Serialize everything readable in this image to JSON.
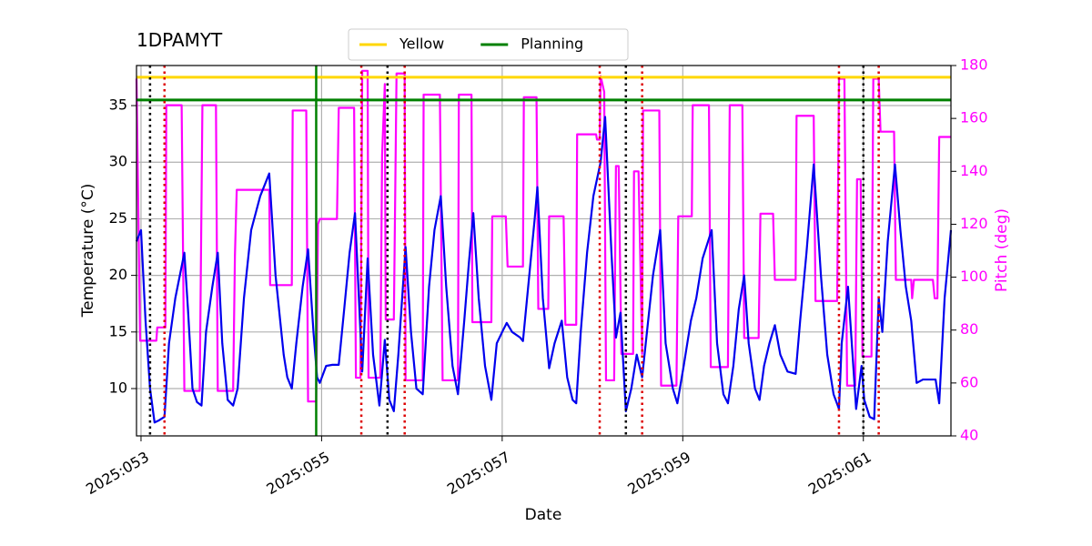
{
  "chart_data": {
    "type": "line",
    "title": "1DPAMYT",
    "xlabel": "Date",
    "ylabel": "Temperature (°C)",
    "y2label": "Pitch (deg)",
    "y2color": "#ff00ff",
    "xlim": [
      52.95,
      61.97
    ],
    "xticks": [
      {
        "value": 53,
        "label": "2025:053"
      },
      {
        "value": 55,
        "label": "2025:055"
      },
      {
        "value": 57,
        "label": "2025:057"
      },
      {
        "value": 59,
        "label": "2025:059"
      },
      {
        "value": 61,
        "label": "2025:061"
      }
    ],
    "ylim": [
      5.82,
      38.54
    ],
    "yticks": [
      10,
      15,
      20,
      25,
      30,
      35
    ],
    "y2lim": [
      40,
      180
    ],
    "y2ticks": [
      40,
      60,
      80,
      100,
      120,
      140,
      160,
      180
    ],
    "grid": true,
    "legend": "top",
    "hlines": [
      {
        "name": "Yellow",
        "color": "#ffd700",
        "value": 37.5
      },
      {
        "name": "Planning",
        "color": "#008000",
        "value": 35.5
      }
    ],
    "vlines": [
      {
        "color": "#000000",
        "style": "dotted",
        "x": [
          53.1,
          55.73,
          58.37,
          61.0
        ]
      },
      {
        "color": "#dd0000",
        "style": "dotted",
        "x": [
          53.26,
          55.44,
          55.92,
          58.08,
          58.55,
          60.73,
          61.17
        ]
      },
      {
        "color": "#008000",
        "style": "solid",
        "x": [
          54.94
        ]
      }
    ],
    "series": [
      {
        "color": "#0000ee",
        "x": [
          52.95,
          53.0,
          53.05,
          53.1,
          53.15,
          53.2,
          53.26,
          53.31,
          53.38,
          53.48,
          53.52,
          53.57,
          53.62,
          53.67,
          53.72,
          53.79,
          53.85,
          53.9,
          53.96,
          54.02,
          54.07,
          54.14,
          54.22,
          54.32,
          54.42,
          54.49,
          54.58,
          54.62,
          54.67,
          54.72,
          54.79,
          54.85,
          54.91,
          54.95,
          54.98,
          55.05,
          55.12,
          55.19,
          55.25,
          55.31,
          55.37,
          55.43,
          55.45,
          55.51,
          55.57,
          55.64,
          55.7,
          55.75,
          55.8,
          55.85,
          55.93,
          55.99,
          56.05,
          56.12,
          56.19,
          56.25,
          56.32,
          56.38,
          56.45,
          56.51,
          56.58,
          56.63,
          56.68,
          56.74,
          56.81,
          56.88,
          56.94,
          57.0,
          57.05,
          57.11,
          57.2,
          57.23,
          57.3,
          57.36,
          57.39,
          57.45,
          57.52,
          57.58,
          57.66,
          57.72,
          57.78,
          57.82,
          57.87,
          57.94,
          58.01,
          58.09,
          58.14,
          58.21,
          58.26,
          58.31,
          58.37,
          58.43,
          58.49,
          58.55,
          58.59,
          58.67,
          58.75,
          58.81,
          58.89,
          58.94,
          59.01,
          59.09,
          59.15,
          59.22,
          59.32,
          59.38,
          59.45,
          59.5,
          59.56,
          59.62,
          59.68,
          59.73,
          59.8,
          59.85,
          59.9,
          59.96,
          60.02,
          60.08,
          60.16,
          60.25,
          60.3,
          60.37,
          60.45,
          60.53,
          60.6,
          60.67,
          60.73,
          60.76,
          60.83,
          60.88,
          60.92,
          60.98,
          61.01,
          61.07,
          61.12,
          61.17,
          61.21,
          61.27,
          61.35,
          61.41,
          61.47,
          61.53,
          61.59,
          61.66,
          61.77,
          61.8,
          61.84,
          61.9,
          61.97
        ],
        "values": [
          23,
          24,
          16,
          10,
          7,
          7.2,
          7.5,
          14,
          18,
          22,
          17,
          10,
          8.8,
          8.5,
          15,
          19,
          22,
          14,
          9,
          8.5,
          10,
          18,
          24,
          27,
          29,
          20,
          13,
          11,
          10,
          14,
          19,
          22.3,
          15,
          11,
          10.5,
          12,
          12.1,
          12.1,
          17,
          22,
          25.5,
          15,
          11.5,
          21.5,
          13,
          8.5,
          14.3,
          9,
          8,
          13,
          22.5,
          15,
          10,
          9.5,
          19,
          24,
          27,
          19,
          12,
          9.5,
          16,
          21,
          25.5,
          18,
          12,
          9,
          14,
          15,
          15.8,
          15,
          14.5,
          14.2,
          20,
          25,
          27.8,
          18,
          11.8,
          14,
          16,
          11,
          9,
          8.7,
          15,
          22,
          27,
          30,
          34,
          22,
          14.5,
          16.7,
          8,
          10,
          13,
          11,
          14,
          20,
          24,
          14,
          10,
          8.7,
          12,
          16,
          18,
          21.5,
          24,
          14,
          9.5,
          8.7,
          12,
          17,
          20,
          14,
          10,
          9,
          12,
          14,
          15.6,
          13,
          11.5,
          11.3,
          16,
          22,
          29.8,
          20,
          13,
          9.5,
          8.2,
          14,
          19,
          13,
          8.2,
          12,
          9,
          7.5,
          7.3,
          18,
          15,
          23,
          29.8,
          24,
          19,
          16,
          10.5,
          10.8,
          10.8,
          10.8,
          8.7,
          18,
          24
        ]
      },
      {
        "color": "#ff00ff",
        "axis": "y2",
        "x": [
          52.95,
          52.99,
          53.17,
          53.18,
          53.27,
          53.28,
          53.45,
          53.48,
          53.65,
          53.68,
          53.83,
          53.85,
          54.02,
          54.04,
          54.06,
          54.42,
          54.43,
          54.67,
          54.68,
          54.83,
          54.85,
          54.94,
          54.96,
          54.98,
          55.17,
          55.19,
          55.36,
          55.38,
          55.43,
          55.45,
          55.51,
          55.52,
          55.65,
          55.67,
          55.7,
          55.71,
          55.8,
          55.83,
          55.92,
          55.93,
          56.12,
          56.13,
          56.31,
          56.34,
          56.51,
          56.52,
          56.66,
          56.67,
          56.88,
          56.89,
          57.04,
          57.06,
          57.23,
          57.24,
          57.38,
          57.4,
          57.51,
          57.52,
          57.68,
          57.7,
          57.82,
          57.83,
          58.04,
          58.05,
          58.08,
          58.09,
          58.13,
          58.15,
          58.24,
          58.26,
          58.29,
          58.32,
          58.45,
          58.46,
          58.51,
          58.55,
          58.56,
          58.74,
          58.76,
          58.93,
          58.95,
          59.1,
          59.11,
          59.29,
          59.31,
          59.5,
          59.52,
          59.66,
          59.68,
          59.84,
          59.86,
          60.0,
          60.02,
          60.25,
          60.26,
          60.45,
          60.47,
          60.71,
          60.73,
          60.79,
          60.82,
          60.91,
          60.93,
          60.97,
          60.99,
          61.09,
          61.11,
          61.17,
          61.19,
          61.34,
          61.36,
          61.53,
          61.54,
          61.56,
          61.77,
          61.79,
          61.82,
          61.84,
          61.97
        ],
        "values": [
          175,
          76,
          76,
          81,
          81,
          165,
          165,
          57,
          57,
          165,
          165,
          57,
          57,
          108,
          133,
          133,
          97,
          97,
          163,
          163,
          53,
          53,
          120,
          122,
          122,
          164,
          164,
          62,
          62,
          178,
          178,
          62,
          62,
          146,
          173,
          84,
          84,
          177,
          177,
          61,
          61,
          169,
          169,
          61,
          61,
          169,
          169,
          83,
          83,
          123,
          123,
          104,
          104,
          168,
          168,
          88,
          88,
          123,
          123,
          82,
          82,
          154,
          154,
          152,
          152,
          176,
          170,
          61,
          61,
          142,
          142,
          71,
          71,
          140,
          140,
          71,
          163,
          163,
          59,
          59,
          123,
          123,
          165,
          165,
          66,
          66,
          165,
          165,
          77,
          77,
          124,
          124,
          99,
          99,
          161,
          161,
          91,
          91,
          175,
          175,
          59,
          59,
          137,
          137,
          70,
          70,
          175,
          175,
          155,
          155,
          99,
          99,
          92,
          99,
          99,
          92,
          92,
          153,
          153
        ]
      }
    ]
  }
}
